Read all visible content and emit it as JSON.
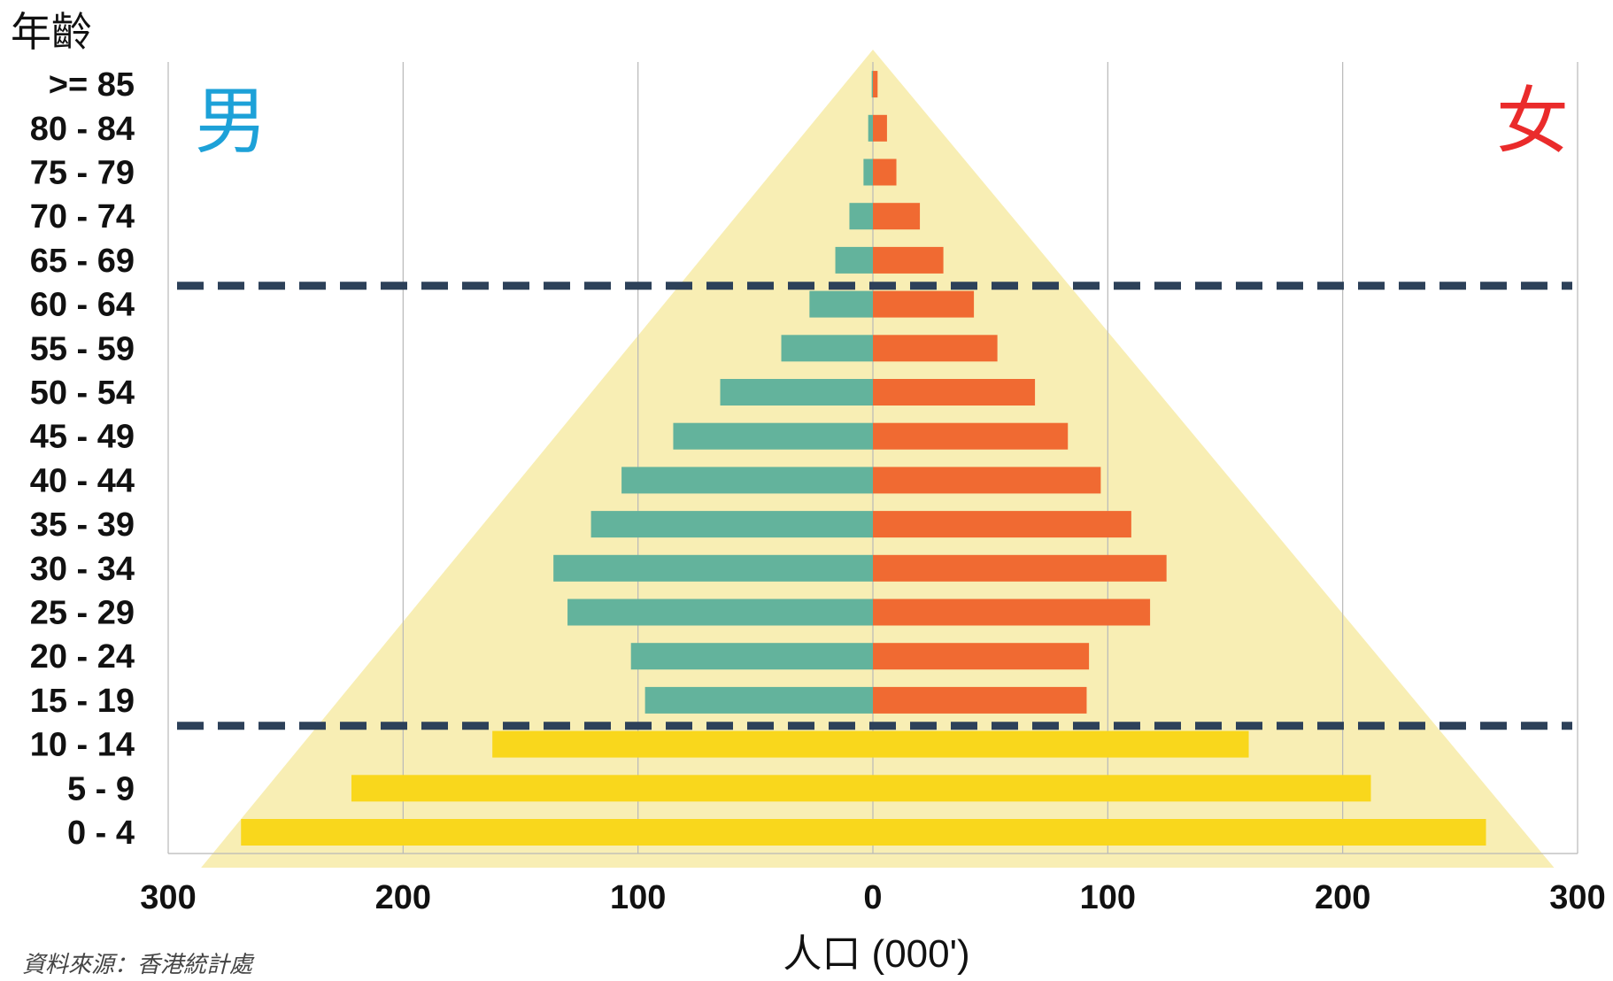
{
  "chart_data": {
    "type": "bar",
    "subtype": "population-pyramid",
    "ylabel": "年齡",
    "xlabel": "人口 (000')",
    "male_label": "男",
    "female_label": "女",
    "source": "資料來源：香港統計處",
    "categories": [
      "0 - 4",
      "5 - 9",
      "10 - 14",
      "15 - 19",
      "20 - 24",
      "25 - 29",
      "30 - 34",
      "35 - 39",
      "40 - 44",
      "45 - 49",
      "50 - 54",
      "55 - 59",
      "60 - 64",
      "65 - 69",
      "70 - 74",
      "75 - 79",
      "80 - 84",
      ">= 85"
    ],
    "series": [
      {
        "name": "男",
        "values": [
          269,
          222,
          162,
          97,
          103,
          130,
          136,
          120,
          107,
          85,
          65,
          39,
          27,
          16,
          10,
          4,
          2,
          0.5
        ]
      },
      {
        "name": "女",
        "values": [
          261,
          212,
          160,
          91,
          92,
          118,
          125,
          110,
          97,
          83,
          69,
          53,
          43,
          30,
          20,
          10,
          6,
          2
        ]
      }
    ],
    "x_ticks": [
      "300",
      "200",
      "100",
      "0",
      "100",
      "200",
      "300"
    ],
    "xlim": [
      -300,
      300
    ],
    "dashed_lines_between": [
      [
        "10 - 14",
        "15 - 19"
      ],
      [
        "60 - 64",
        "65 - 69"
      ]
    ],
    "background_shape": "triangle",
    "grid": "vertical",
    "colors": {
      "male": "#63b39c",
      "female": "#f06a32",
      "child": "#f9d71c",
      "triangle": "#f8eeb4",
      "dashed": "#2d4159",
      "grid": "#b8b8b8",
      "male_label": "#1da1d8",
      "female_label": "#ea2b2b"
    }
  }
}
